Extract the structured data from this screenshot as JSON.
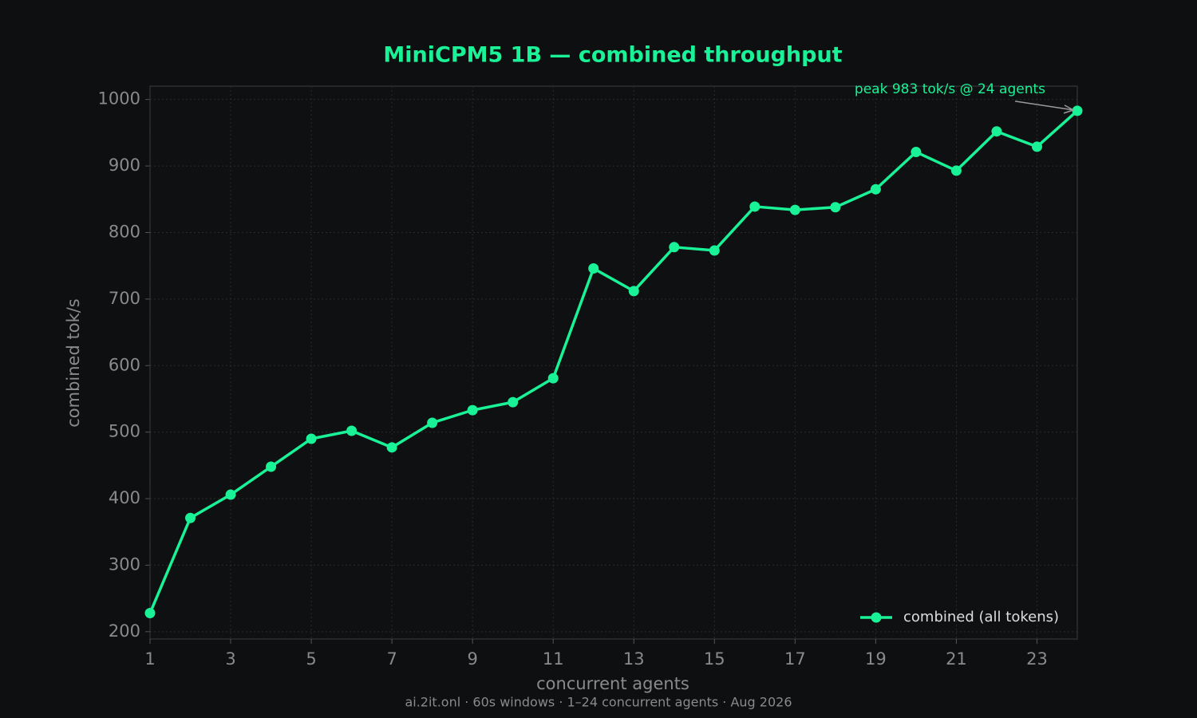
{
  "chart_data": {
    "type": "line",
    "title": "MiniCPM5 1B — combined throughput",
    "xlabel": "concurrent agents",
    "ylabel": "combined tok/s",
    "footnote": "ai.2it.onl · 60s windows · 1–24 concurrent agents · Aug 2026",
    "annotation": "peak 983 tok/s @ 24 agents",
    "x": [
      1,
      2,
      3,
      4,
      5,
      6,
      7,
      8,
      9,
      10,
      11,
      12,
      13,
      14,
      15,
      16,
      17,
      18,
      19,
      20,
      21,
      22,
      23,
      24
    ],
    "series": [
      {
        "name": "combined (all tokens)",
        "color": "#19f296",
        "values": [
          228,
          371,
          406,
          448,
          490,
          502,
          477,
          514,
          533,
          545,
          581,
          746,
          712,
          778,
          773,
          839,
          834,
          838,
          865,
          921,
          893,
          952,
          929,
          983
        ]
      }
    ],
    "xlim": [
      1,
      24
    ],
    "xticks": [
      1,
      3,
      5,
      7,
      9,
      11,
      13,
      15,
      17,
      19,
      21,
      23
    ],
    "ylim": [
      189,
      1020
    ],
    "yticks": [
      200,
      300,
      400,
      500,
      600,
      700,
      800,
      900,
      1000
    ],
    "grid": true,
    "legend": "lower right"
  }
}
